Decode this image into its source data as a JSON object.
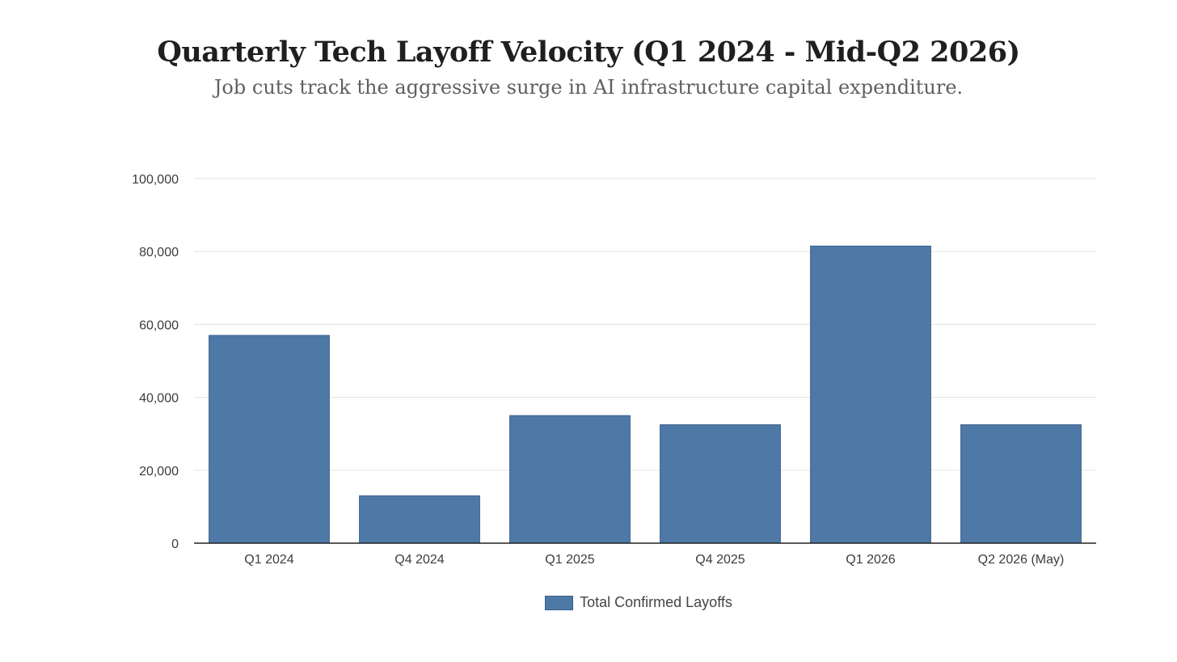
{
  "title": "Quarterly Tech Layoff Velocity (Q1 2024 - Mid-Q2 2026)",
  "subtitle": "Job cuts track the aggressive surge in AI infrastructure capital expenditure.",
  "colors": {
    "bar": "#4e79a7",
    "bar_stroke": "#3a5f8a",
    "grid": "#e3e3e3",
    "axis": "#222222"
  },
  "chart_data": {
    "type": "bar",
    "categories": [
      "Q1 2024",
      "Q4 2024",
      "Q1 2025",
      "Q4 2025",
      "Q1 2026",
      "Q2 2026 (May)"
    ],
    "series": [
      {
        "name": "Total Confirmed Layoffs",
        "values": [
          57000,
          13000,
          35000,
          32500,
          81500,
          32500
        ]
      }
    ],
    "ylim": [
      0,
      100000
    ],
    "yticks": [
      0,
      20000,
      40000,
      60000,
      80000,
      100000
    ],
    "ytick_labels": [
      "0",
      "20,000",
      "40,000",
      "60,000",
      "80,000",
      "100,000"
    ],
    "grid": true,
    "legend": "bottom-center"
  }
}
